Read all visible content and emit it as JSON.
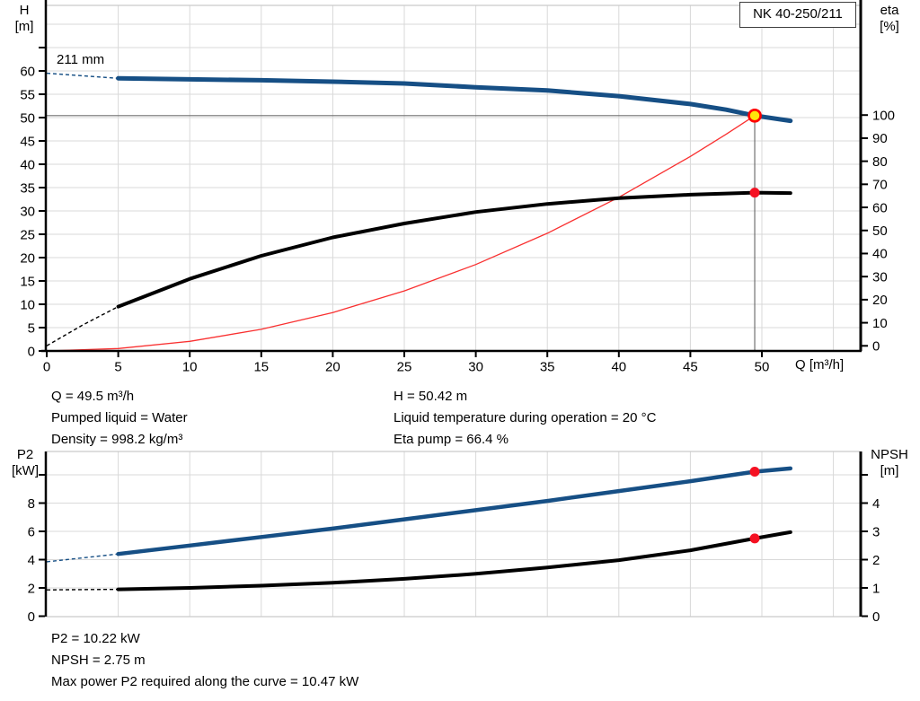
{
  "pump_name": "NK 40-250/211",
  "impeller_diameter_label": "211 mm",
  "axis_labels": {
    "top_left": [
      "H",
      "[m]"
    ],
    "top_right": [
      "eta",
      "[%]"
    ],
    "top_x": "Q [m³/h]",
    "bottom_left": [
      "P2",
      "[kW]"
    ],
    "bottom_right": [
      "NPSH",
      "[m]"
    ]
  },
  "info_top": {
    "left": [
      "Q = 49.5 m³/h",
      "Pumped liquid = Water",
      "Density = 998.2 kg/m³"
    ],
    "right": [
      "H = 50.42 m",
      "Liquid temperature during operation = 20 °C",
      "Eta pump = 66.4 %"
    ]
  },
  "info_bottom": [
    "P2 = 10.22 kW",
    "NPSH = 2.75 m",
    "Max power P2 required along the curve = 10.47 kW"
  ],
  "colors": {
    "blue": "#164f85",
    "black": "#000000",
    "red": "#f93030",
    "grid": "#d9d9d9",
    "frame": "#c9c9c9",
    "axis": "#000000",
    "ref_line": "#707070",
    "duty_fill": "#ffe60a",
    "duty_ring": "#ff0000",
    "dot_red": "#f51122"
  },
  "chart_data": [
    {
      "id": "qh",
      "type": "line",
      "title": "NK 40-250/211",
      "xlabel": "Q [m³/h]",
      "ylabel_left": "H [m]",
      "ylabel_right": "eta [%]",
      "x_range": [
        0,
        56.8
      ],
      "left_range": [
        0,
        74
      ],
      "right_range": [
        0,
        100
      ],
      "x_ticks": [
        0,
        5,
        10,
        15,
        20,
        25,
        30,
        35,
        40,
        45,
        50
      ],
      "x_gridlines": [
        5,
        10,
        15,
        20,
        25,
        30,
        35,
        40,
        45,
        50,
        55
      ],
      "left_ticks": [
        0,
        5,
        10,
        15,
        20,
        25,
        30,
        35,
        40,
        45,
        50,
        55,
        60
      ],
      "left_extra_ticks": [
        65
      ],
      "left_gridlines": [
        5,
        10,
        15,
        20,
        25,
        30,
        35,
        40,
        45,
        50,
        55,
        60,
        65,
        70
      ],
      "right_ticks": [
        0,
        10,
        20,
        30,
        40,
        50,
        60,
        70,
        80,
        90,
        100
      ],
      "right_extra_ticks": [],
      "series": [
        {
          "name": "system-curve",
          "axis": "left",
          "color": "red",
          "width": 1.3,
          "x": [
            0,
            5,
            10,
            15,
            20,
            25,
            30,
            35,
            40,
            45,
            47.5,
            49.5
          ],
          "y": [
            0,
            0.51,
            2.06,
            4.63,
            8.23,
            12.86,
            18.52,
            25.21,
            32.92,
            41.67,
            46.43,
            50.42
          ]
        },
        {
          "name": "eta-curve",
          "axis": "right",
          "color": "black",
          "width": 4,
          "dash_until": 5,
          "x": [
            0,
            2.5,
            5,
            10,
            15,
            20,
            25,
            30,
            35,
            40,
            45,
            49.5,
            52
          ],
          "y": [
            0,
            9,
            17,
            29,
            39,
            47,
            53,
            58,
            61.5,
            64,
            65.5,
            66.4,
            66.2
          ]
        },
        {
          "name": "qh-curve",
          "axis": "left",
          "color": "blue",
          "width": 5,
          "dash_until": 5,
          "x": [
            0,
            5,
            10,
            15,
            20,
            25,
            30,
            35,
            40,
            45,
            47.5,
            49.5,
            52
          ],
          "y": [
            59.5,
            58.4,
            58.2,
            58.0,
            57.7,
            57.3,
            56.5,
            55.8,
            54.6,
            52.9,
            51.7,
            50.42,
            49.3
          ]
        }
      ],
      "duty_point": {
        "q": 49.5,
        "h": 50.42,
        "eta": 66.4
      },
      "ref_lines": {
        "horizontal_at": 50.42,
        "vertical_at": 49.5
      },
      "markers": [
        {
          "name": "duty-point",
          "axis": "left",
          "q": 49.5,
          "v": 50.42,
          "style": "yellow"
        },
        {
          "name": "eta-point",
          "axis": "right",
          "q": 49.5,
          "v": 66.4,
          "style": "red"
        }
      ]
    },
    {
      "id": "p2npsh",
      "type": "line",
      "title": "",
      "xlabel": "",
      "ylabel_left": "P2 [kW]",
      "ylabel_right": "NPSH [m]",
      "x_range": [
        0,
        56.8
      ],
      "left_range": [
        0,
        11.6
      ],
      "right_range": [
        0,
        5.8
      ],
      "x_ticks": [],
      "x_gridlines": [
        5,
        10,
        15,
        20,
        25,
        30,
        35,
        40,
        45,
        50,
        55
      ],
      "left_ticks": [
        0,
        2,
        4,
        6,
        8
      ],
      "left_extra_ticks": [
        10
      ],
      "left_gridlines": [
        2,
        4,
        6,
        8,
        10
      ],
      "right_ticks": [
        0,
        1,
        2,
        3,
        4
      ],
      "right_extra_ticks": [
        5
      ],
      "series": [
        {
          "name": "p2-curve",
          "axis": "left",
          "color": "blue",
          "width": 4.5,
          "dash_until": 5,
          "x": [
            0,
            5,
            10,
            15,
            20,
            25,
            30,
            35,
            40,
            45,
            49.5,
            52
          ],
          "y": [
            3.85,
            4.4,
            5.0,
            5.6,
            6.2,
            6.85,
            7.5,
            8.15,
            8.85,
            9.55,
            10.22,
            10.45
          ]
        },
        {
          "name": "npsh-curve",
          "axis": "right",
          "color": "black",
          "width": 4,
          "dash_until": 5,
          "x": [
            0,
            5,
            10,
            15,
            20,
            25,
            30,
            35,
            40,
            45,
            49.5,
            52
          ],
          "y": [
            0.93,
            0.95,
            1.0,
            1.08,
            1.18,
            1.32,
            1.5,
            1.72,
            1.98,
            2.33,
            2.75,
            2.97
          ]
        }
      ],
      "markers": [
        {
          "name": "p2-point",
          "axis": "left",
          "q": 49.5,
          "v": 10.22,
          "style": "red"
        },
        {
          "name": "npsh-point",
          "axis": "right",
          "q": 49.5,
          "v": 2.75,
          "style": "red"
        }
      ]
    }
  ]
}
